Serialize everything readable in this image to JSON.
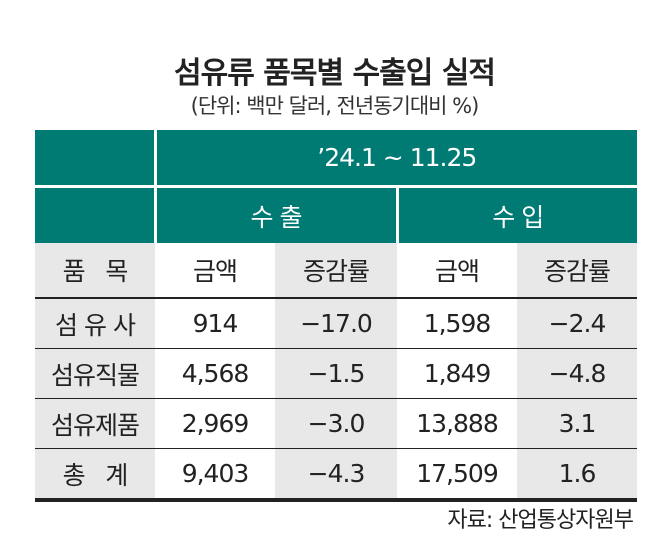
{
  "title": "섬유류 품목별 수출입 실적",
  "subtitle": "(단위: 백만 달러, 전년동기대비 %)",
  "table": {
    "period": "’24.1 ~ 11.25",
    "groups": [
      "수 출",
      "수 입"
    ],
    "columns": [
      "품   목",
      "금액",
      "증감률",
      "금액",
      "증감률"
    ],
    "rows": [
      [
        "섬 유 사",
        "914",
        "−17.0",
        "1,598",
        "−2.4"
      ],
      [
        "섬유직물",
        "4,568",
        "−1.5",
        "1,849",
        "−4.8"
      ],
      [
        "섬유제품",
        "2,969",
        "−3.0",
        "13,888",
        "3.1"
      ],
      [
        "총   계",
        "9,403",
        "−4.3",
        "17,509",
        "1.6"
      ]
    ]
  },
  "source": "자료: 산업통상자원부",
  "colors": {
    "header": "#007b74",
    "shade": "#e8e8e8"
  }
}
